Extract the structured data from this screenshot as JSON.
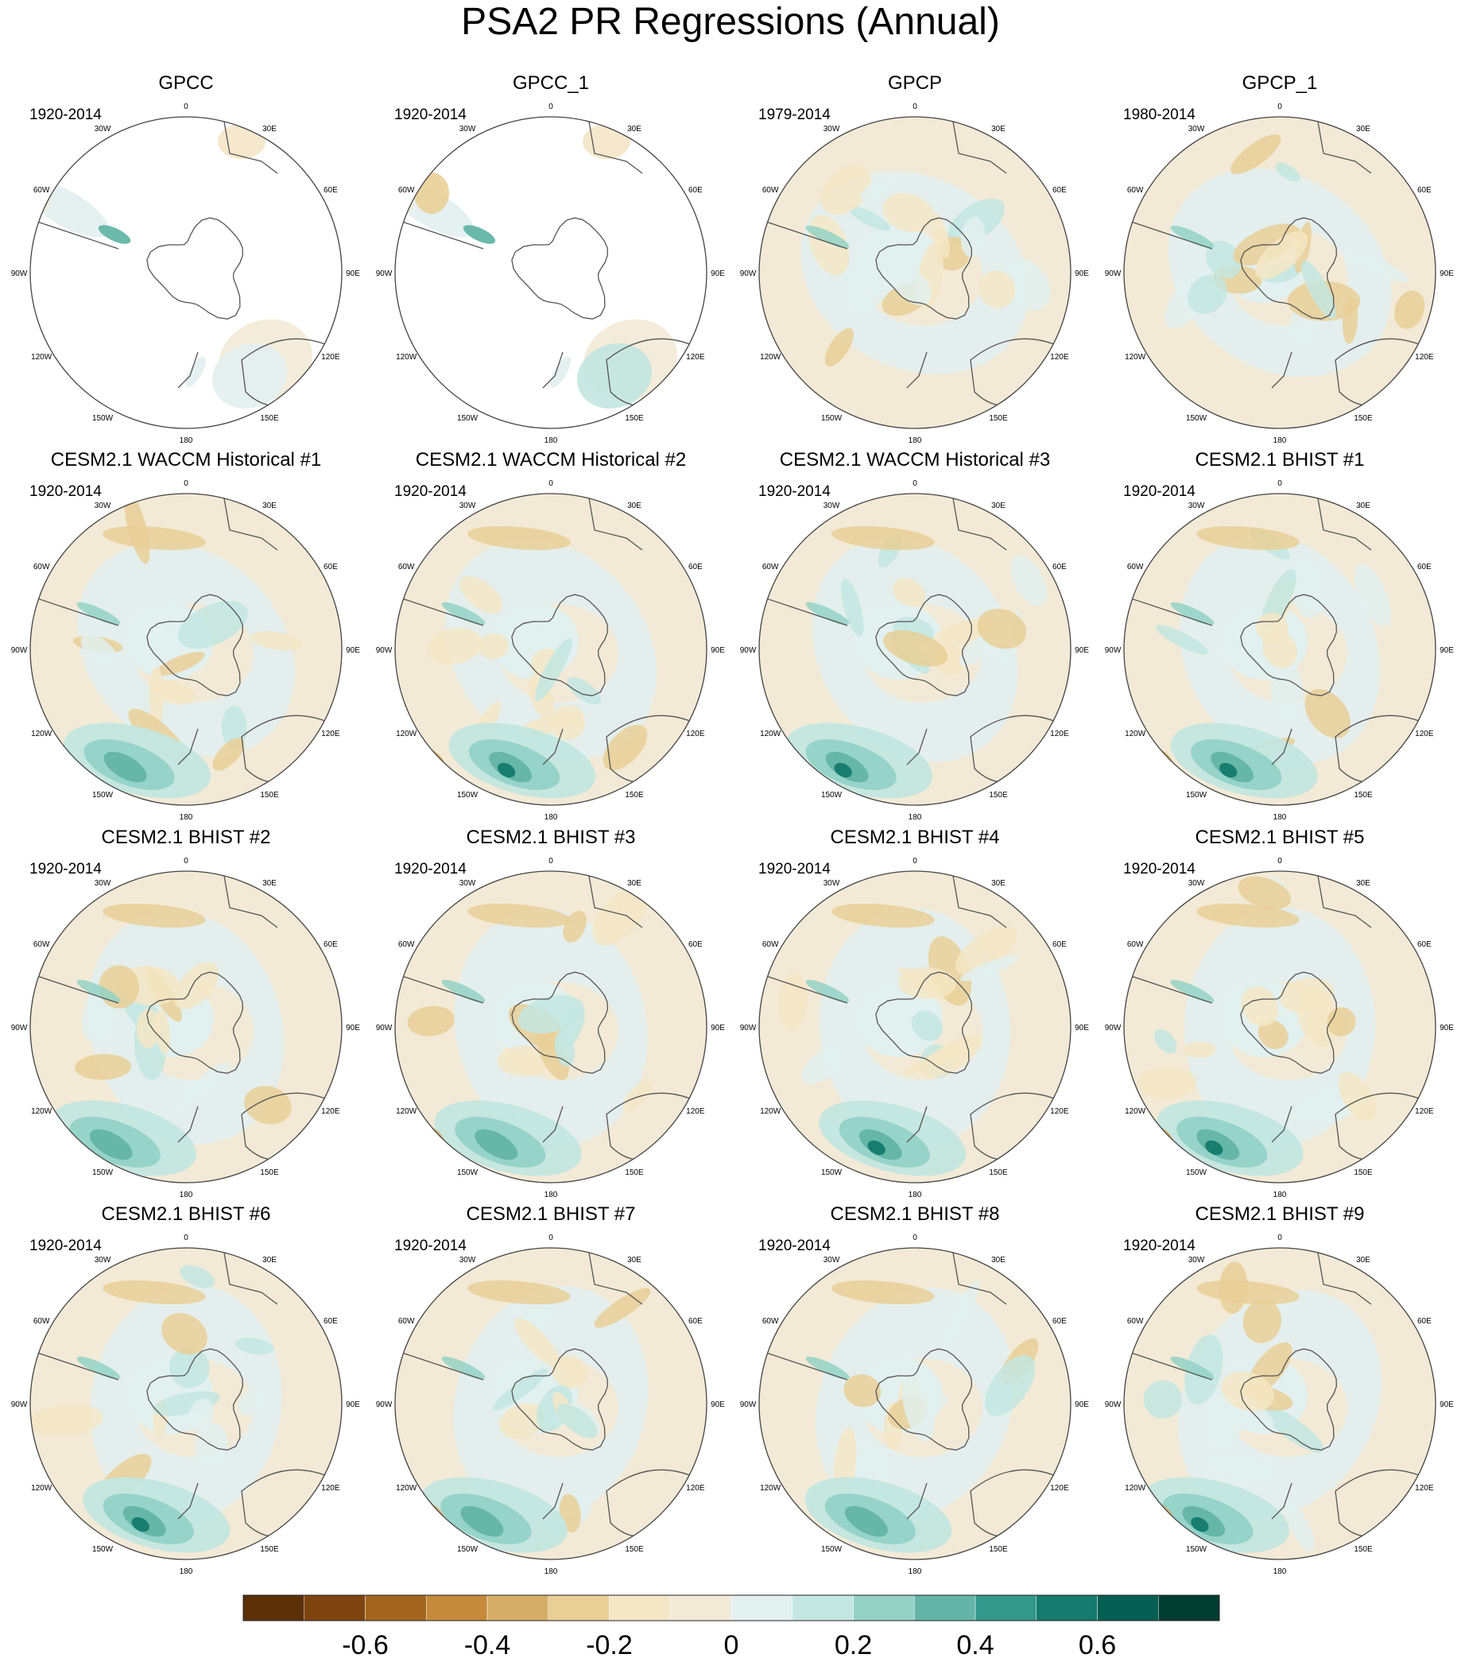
{
  "title": "PSA2 PR Regressions (Annual)",
  "colors": {
    "brown_dark": "#5b3008",
    "tan_light": "#f2ead6",
    "teal_light": "#e2f0ef",
    "teal_dark": "#003c30",
    "coastline": "#555555",
    "frame": "#444444"
  },
  "lon_labels": [
    "0",
    "30E",
    "60E",
    "90E",
    "120E",
    "150E",
    "180",
    "150W",
    "120W",
    "90W",
    "60W",
    "30W"
  ],
  "panels": [
    {
      "title": "GPCC",
      "period": "1920-2014",
      "style": "sparse"
    },
    {
      "title": "GPCC_1",
      "period": "1920-2014",
      "style": "sparse"
    },
    {
      "title": "GPCP",
      "period": "1979-2014",
      "style": "obs"
    },
    {
      "title": "GPCP_1",
      "period": "1980-2014",
      "style": "obs"
    },
    {
      "title": "CESM2.1 WACCM Historical #1",
      "period": "1920-2014",
      "style": "model"
    },
    {
      "title": "CESM2.1 WACCM Historical #2",
      "period": "1920-2014",
      "style": "model"
    },
    {
      "title": "CESM2.1 WACCM Historical #3",
      "period": "1920-2014",
      "style": "model"
    },
    {
      "title": "CESM2.1 BHIST #1",
      "period": "1920-2014",
      "style": "model"
    },
    {
      "title": "CESM2.1 BHIST #2",
      "period": "1920-2014",
      "style": "model"
    },
    {
      "title": "CESM2.1 BHIST #3",
      "period": "1920-2014",
      "style": "model"
    },
    {
      "title": "CESM2.1 BHIST #4",
      "period": "1920-2014",
      "style": "model"
    },
    {
      "title": "CESM2.1 BHIST #5",
      "period": "1920-2014",
      "style": "model"
    },
    {
      "title": "CESM2.1 BHIST #6",
      "period": "1920-2014",
      "style": "model"
    },
    {
      "title": "CESM2.1 BHIST #7",
      "period": "1920-2014",
      "style": "model"
    },
    {
      "title": "CESM2.1 BHIST #8",
      "period": "1920-2014",
      "style": "model"
    },
    {
      "title": "CESM2.1 BHIST #9",
      "period": "1920-2014",
      "style": "model"
    }
  ],
  "colorbar": {
    "colors": [
      "#5b3008",
      "#7e4410",
      "#a3651d",
      "#c48a3a",
      "#d6ad66",
      "#e9cf96",
      "#f5e6c6",
      "#f2ead6",
      "#e2f0ef",
      "#c3e6e0",
      "#94d2c6",
      "#63b5a7",
      "#33978a",
      "#137a6d",
      "#045e52",
      "#003c30"
    ],
    "tick_labels": [
      "-0.6",
      "-0.4",
      "-0.2",
      "0",
      "0.2",
      "0.4",
      "0.6"
    ]
  }
}
